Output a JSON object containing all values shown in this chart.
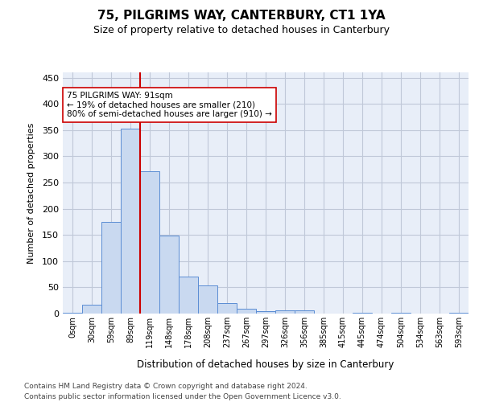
{
  "title1": "75, PILGRIMS WAY, CANTERBURY, CT1 1YA",
  "title2": "Size of property relative to detached houses in Canterbury",
  "xlabel": "Distribution of detached houses by size in Canterbury",
  "ylabel": "Number of detached properties",
  "bins": [
    "0sqm",
    "30sqm",
    "59sqm",
    "89sqm",
    "119sqm",
    "148sqm",
    "178sqm",
    "208sqm",
    "237sqm",
    "267sqm",
    "297sqm",
    "326sqm",
    "356sqm",
    "385sqm",
    "415sqm",
    "445sqm",
    "474sqm",
    "504sqm",
    "534sqm",
    "563sqm",
    "593sqm"
  ],
  "bar_heights": [
    2,
    17,
    175,
    352,
    272,
    148,
    70,
    54,
    20,
    9,
    5,
    6,
    6,
    0,
    0,
    1,
    0,
    1,
    0,
    0,
    1
  ],
  "bar_color": "#c9d9f0",
  "bar_edge_color": "#5b8dd4",
  "vline_x": 3.5,
  "vline_color": "#cc0000",
  "annotation_text": "75 PILGRIMS WAY: 91sqm\n← 19% of detached houses are smaller (210)\n80% of semi-detached houses are larger (910) →",
  "annotation_box_color": "#ffffff",
  "annotation_box_edge": "#cc0000",
  "grid_color": "#c0c8d8",
  "background_color": "#e8eef8",
  "footer1": "Contains HM Land Registry data © Crown copyright and database right 2024.",
  "footer2": "Contains public sector information licensed under the Open Government Licence v3.0.",
  "ylim": [
    0,
    460
  ],
  "yticks": [
    0,
    50,
    100,
    150,
    200,
    250,
    300,
    350,
    400,
    450
  ]
}
